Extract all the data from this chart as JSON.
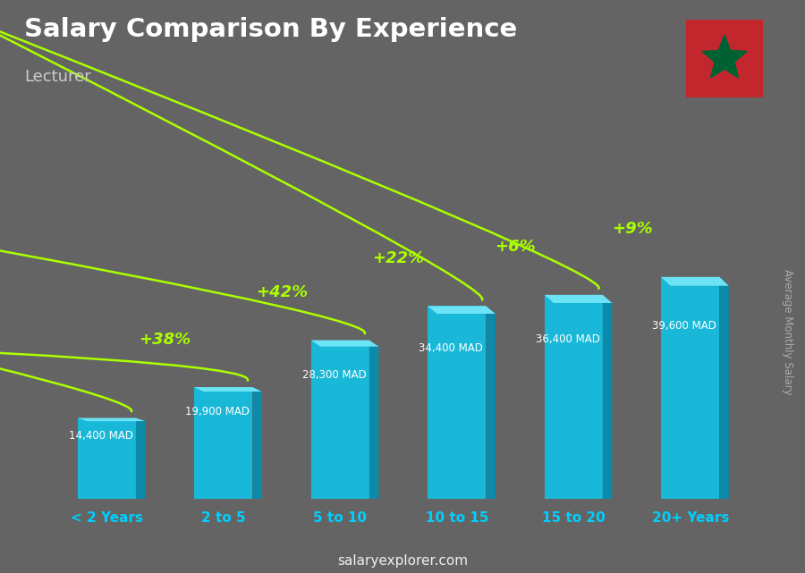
{
  "title": "Salary Comparison By Experience",
  "subtitle": "Lecturer",
  "ylabel": "Average Monthly Salary",
  "watermark": "salaryexplorer.com",
  "categories": [
    "< 2 Years",
    "2 to 5",
    "5 to 10",
    "10 to 15",
    "15 to 20",
    "20+ Years"
  ],
  "values": [
    14400,
    19900,
    28300,
    34400,
    36400,
    39600
  ],
  "value_labels": [
    "14,400 MAD",
    "19,900 MAD",
    "28,300 MAD",
    "34,400 MAD",
    "36,400 MAD",
    "39,600 MAD"
  ],
  "pct_labels": [
    "+38%",
    "+42%",
    "+22%",
    "+6%",
    "+9%"
  ],
  "bar_color_front": "#1ab8d8",
  "bar_color_side": "#0d8aaa",
  "bar_color_top": "#6de4f5",
  "bg_color": "#646464",
  "title_color": "#ffffff",
  "subtitle_color": "#cccccc",
  "value_label_color": "#ffffff",
  "pct_color": "#aaff00",
  "xtick_color": "#00cfff",
  "flag_red": "#c1272d",
  "flag_green": "#006233",
  "figsize": [
    9.0,
    6.41
  ],
  "dpi": 100
}
